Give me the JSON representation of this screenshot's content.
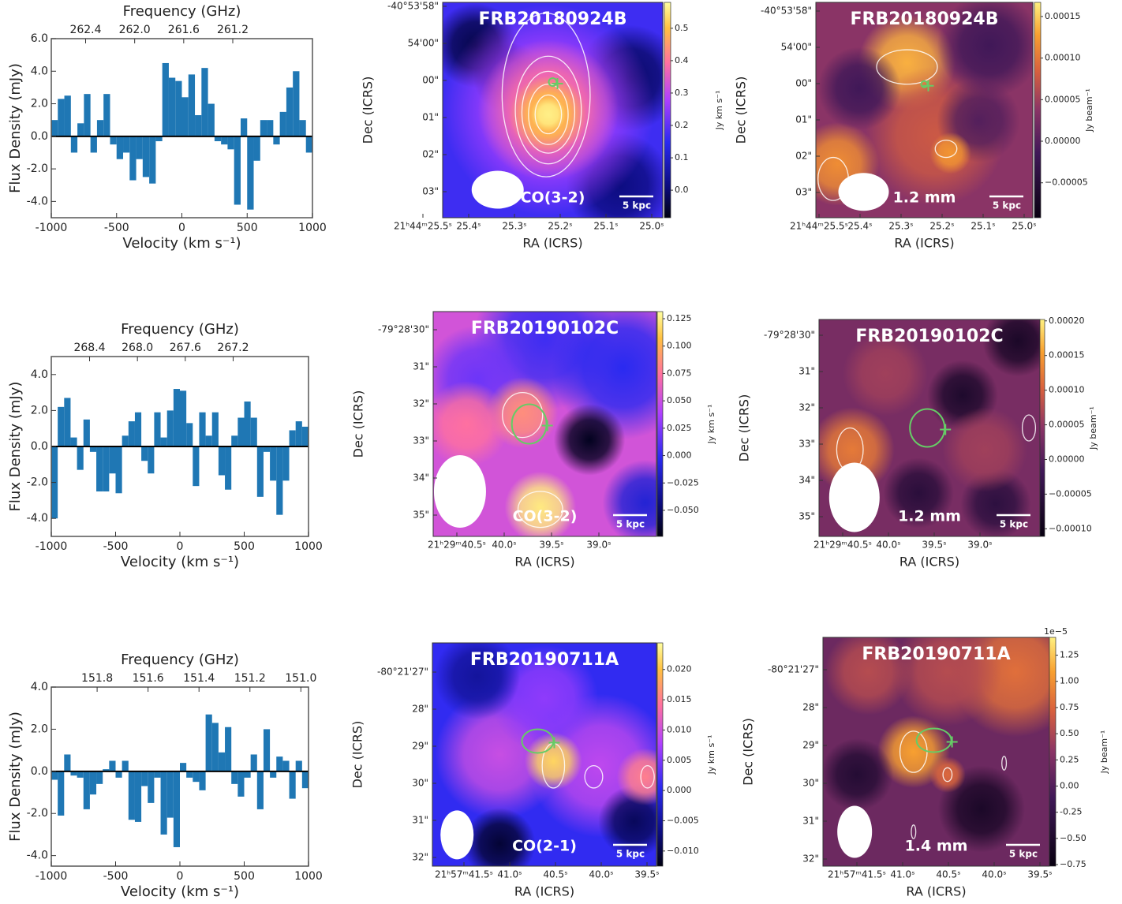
{
  "chart_data": [
    {
      "type": "histogram",
      "xlabel": "Velocity (km s⁻¹)",
      "ylabel": "Flux Density (mJy)",
      "x2label": "Frequency (GHz)",
      "color": "#1f77b4",
      "bins": [
        -1000,
        -950,
        -900,
        -850,
        -800,
        -750,
        -700,
        -650,
        -600,
        -550,
        -500,
        -450,
        -400,
        -350,
        -300,
        -250,
        -200,
        -150,
        -100,
        -50,
        0,
        50,
        100,
        150,
        200,
        250,
        300,
        350,
        400,
        450,
        500,
        550,
        600,
        650,
        700,
        750,
        800,
        850,
        900,
        950,
        1000
      ],
      "values": [
        1.0,
        2.3,
        2.5,
        -1.0,
        0.8,
        2.6,
        -1.0,
        1.0,
        2.6,
        -0.5,
        -1.4,
        -1.0,
        -2.7,
        -1.4,
        -2.5,
        -2.9,
        -0.3,
        4.5,
        3.6,
        3.4,
        2.4,
        3.8,
        1.3,
        4.2,
        2.0,
        -0.3,
        -0.5,
        -0.8,
        -4.2,
        1.1,
        -4.5,
        -1.5,
        1.0,
        1.0,
        -0.5,
        1.5,
        3.0,
        4.0,
        1.0,
        -1.0
      ],
      "xlim": [
        -1000,
        1000
      ],
      "xticks": [
        -1000,
        -500,
        0,
        500,
        1000
      ],
      "ylim": [
        -5,
        6
      ],
      "yticks": [
        {
          "value": -4,
          "label": "-4.0"
        },
        {
          "value": -2,
          "label": "-2.0"
        },
        {
          "value": 0,
          "label": "0.0"
        },
        {
          "value": 2,
          "label": "2.0"
        },
        {
          "value": 4,
          "label": "4.0"
        },
        {
          "value": 6,
          "label": "6.0"
        }
      ],
      "x2lim": [
        262.68,
        260.55
      ],
      "x2ticks": [
        262.4,
        {
          "value": 262,
          "label": "262.0"
        },
        261.6,
        261.2
      ]
    },
    {
      "type": "image",
      "colormap": "gnuplot2",
      "title": "FRB20180924B",
      "label": "CO(3-2)",
      "scalebar_label": "5 kpc",
      "xlabel": "RA (ICRS)",
      "ylabel": "Dec (ICRS)",
      "xtick_labels": [
        "21ʰ44ᵐ25.5ˢ",
        "25.4ˢ",
        "25.3ˢ",
        "25.2ˢ",
        "25.1ˢ",
        "25.0ˢ"
      ],
      "ytick_labels": [
        "-40°53'58\"",
        "54'00\"",
        "00\"",
        "01\"",
        "02\"",
        "03\""
      ],
      "colorbar_label": "Jy km s⁻¹",
      "clim": [
        -0.085,
        0.58
      ],
      "cticks": [
        {
          "value": 0,
          "label": "0.0"
        },
        0.1,
        0.2,
        0.3,
        0.4,
        0.5
      ]
    },
    {
      "type": "image",
      "colormap": "CMRmap",
      "title": "FRB20180924B",
      "label": "1.2 mm",
      "scalebar_label": "5 kpc",
      "xlabel": "RA (ICRS)",
      "ylabel": "Dec (ICRS)",
      "xtick_labels": [
        "21ʰ44ᵐ25.5ˢ",
        "25.4ˢ",
        "25.3ˢ",
        "25.2ˢ",
        "25.1ˢ",
        "25.0ˢ"
      ],
      "ytick_labels": [
        "-40°53'58\"",
        "54'00\"",
        "00\"",
        "01\"",
        "02\"",
        "03\""
      ],
      "colorbar_label": "Jy beam⁻¹",
      "clim": [
        -9.2e-05,
        0.000167
      ],
      "cticks": [
        {
          "value": -5e-05,
          "label": "−0.00005"
        },
        {
          "value": 0,
          "label": "0.00000"
        },
        5e-05,
        {
          "value": 0.0001,
          "label": "0.00010"
        },
        0.00015
      ]
    },
    {
      "type": "histogram",
      "xlabel": "Velocity (km s⁻¹)",
      "ylabel": "Flux Density (mJy)",
      "x2label": "Frequency (GHz)",
      "color": "#1f77b4",
      "bins": [
        -1000,
        -950,
        -900,
        -850,
        -800,
        -750,
        -700,
        -650,
        -600,
        -550,
        -500,
        -450,
        -400,
        -350,
        -300,
        -250,
        -200,
        -150,
        -100,
        -50,
        0,
        50,
        100,
        150,
        200,
        250,
        300,
        350,
        400,
        450,
        500,
        550,
        600,
        650,
        700,
        750,
        800,
        850,
        900,
        950,
        1000
      ],
      "values": [
        -4.0,
        2.2,
        2.7,
        0.5,
        -1.3,
        1.5,
        -0.3,
        -2.5,
        -2.5,
        -1.5,
        -2.6,
        0.6,
        1.4,
        1.9,
        -0.8,
        -1.5,
        1.9,
        0.5,
        2.0,
        3.2,
        3.1,
        1.3,
        -2.2,
        1.9,
        0.6,
        1.9,
        -1.6,
        -2.4,
        0.6,
        1.6,
        2.5,
        1.6,
        -2.8,
        -0.3,
        -1.9,
        -3.8,
        -1.9,
        0.9,
        1.4,
        1.1
      ],
      "xlim": [
        -1000,
        1000
      ],
      "xticks": [
        -1000,
        -500,
        0,
        500,
        1000
      ],
      "ylim": [
        -5,
        5
      ],
      "yticks": [
        {
          "value": -4,
          "label": "-4.0"
        },
        {
          "value": -2,
          "label": "-2.0"
        },
        {
          "value": 0,
          "label": "0.0"
        },
        {
          "value": 2,
          "label": "2.0"
        },
        {
          "value": 4,
          "label": "4.0"
        }
      ],
      "x2lim": [
        268.72,
        266.57
      ],
      "x2ticks": [
        268.4,
        {
          "value": 268,
          "label": "268.0"
        },
        267.6,
        267.2
      ]
    },
    {
      "type": "image",
      "colormap": "gnuplot2",
      "title": "FRB20190102C",
      "label": "CO(3-2)",
      "scalebar_label": "5 kpc",
      "xlabel": "RA (ICRS)",
      "ylabel": "Dec (ICRS)",
      "xtick_labels": [
        "21ʰ29ᵐ40.5ˢ",
        "40.0ˢ",
        "39.5ˢ",
        "39.0ˢ"
      ],
      "ytick_labels": [
        "-79°28'30\"",
        "31\"",
        "32\"",
        "33\"",
        "34\"",
        "35\""
      ],
      "colorbar_label": "Jy km s⁻¹",
      "clim": [
        -0.0738,
        0.1315
      ],
      "cticks": [
        {
          "value": -0.05,
          "label": "−0.050"
        },
        {
          "value": -0.025,
          "label": "−0.025"
        },
        {
          "value": 0,
          "label": "0.000"
        },
        0.025,
        {
          "value": 0.05,
          "label": "0.050"
        },
        0.075,
        {
          "value": 0.1,
          "label": "0.100"
        },
        0.125
      ]
    },
    {
      "type": "image",
      "colormap": "CMRmap",
      "title": "FRB20190102C",
      "label": "1.2 mm",
      "scalebar_label": "5 kpc",
      "xlabel": "RA (ICRS)",
      "ylabel": "Dec (ICRS)",
      "xtick_labels": [
        "21ʰ29ᵐ40.5ˢ",
        "40.0ˢ",
        "39.5ˢ",
        "39.0ˢ"
      ],
      "ytick_labels": [
        "-79°28'30\"",
        "31\"",
        "32\"",
        "33\"",
        "34\"",
        "35\""
      ],
      "colorbar_label": "Jy beam⁻¹",
      "clim": [
        -0.000111,
        0.000202
      ],
      "cticks": [
        {
          "value": -0.0001,
          "label": "−0.00010"
        },
        {
          "value": -5e-05,
          "label": "−0.00005"
        },
        {
          "value": 0,
          "label": "0.00000"
        },
        5e-05,
        {
          "value": 0.0001,
          "label": "0.00010"
        },
        0.00015,
        {
          "value": 0.0002,
          "label": "0.00020"
        }
      ]
    },
    {
      "type": "histogram",
      "xlabel": "Velocity (km s⁻¹)",
      "ylabel": "Flux Density (mJy)",
      "x2label": "Frequency (GHz)",
      "color": "#1f77b4",
      "bins": [
        -1000,
        -950,
        -900,
        -850,
        -800,
        -750,
        -700,
        -650,
        -600,
        -550,
        -500,
        -450,
        -400,
        -350,
        -300,
        -250,
        -200,
        -150,
        -100,
        -50,
        0,
        50,
        100,
        150,
        200,
        250,
        300,
        350,
        400,
        450,
        500,
        550,
        600,
        650,
        700,
        750,
        800,
        850,
        900,
        950,
        1000
      ],
      "values": [
        -0.4,
        -2.1,
        0.8,
        -0.2,
        -0.3,
        -1.8,
        -1.1,
        -0.6,
        0.1,
        0.5,
        -0.3,
        0.5,
        -2.3,
        -2.4,
        -0.7,
        -1.5,
        -0.3,
        -3.0,
        -2.2,
        -3.6,
        0.4,
        -0.3,
        -0.5,
        -0.9,
        2.7,
        2.3,
        0.9,
        2.1,
        -0.6,
        -1.2,
        -0.3,
        0.8,
        -1.8,
        2.0,
        -0.3,
        0.7,
        0.5,
        -1.3,
        0.5,
        -0.8
      ],
      "xlim": [
        -1000,
        1000
      ],
      "xticks": [
        -1000,
        -500,
        0,
        500,
        1000
      ],
      "ylim": [
        -4.5,
        4
      ],
      "yticks": [
        {
          "value": -4,
          "label": "-4.0"
        },
        {
          "value": -2,
          "label": "-2.0"
        },
        {
          "value": 0,
          "label": "0.0"
        },
        {
          "value": 2,
          "label": "2.0"
        },
        {
          "value": 4,
          "label": "4.0"
        }
      ],
      "x2lim": [
        151.98,
        150.97
      ],
      "x2ticks": [
        151.8,
        151.6,
        151.4,
        151.2,
        {
          "value": 151,
          "label": "151.0"
        }
      ]
    },
    {
      "type": "image",
      "colormap": "gnuplot2",
      "title": "FRB20190711A",
      "label": "CO(2-1)",
      "scalebar_label": "5 kpc",
      "xlabel": "RA (ICRS)",
      "ylabel": "Dec (ICRS)",
      "xtick_labels": [
        "21ʰ57ᵐ41.5ˢ",
        "41.0ˢ",
        "40.5ˢ",
        "40.0ˢ",
        "39.5ˢ"
      ],
      "ytick_labels": [
        "-80°21'27\"",
        "28\"",
        "29\"",
        "30\"",
        "31\"",
        "32\""
      ],
      "colorbar_label": "Jy km s⁻¹",
      "clim": [
        -0.0125,
        0.0244
      ],
      "cticks": [
        {
          "value": -0.01,
          "label": "−0.010"
        },
        {
          "value": -0.005,
          "label": "−0.005"
        },
        {
          "value": 0,
          "label": "0.000"
        },
        0.005,
        {
          "value": 0.01,
          "label": "0.010"
        },
        0.015,
        {
          "value": 0.02,
          "label": "0.020"
        }
      ]
    },
    {
      "type": "image",
      "colormap": "CMRmap",
      "title": "FRB20190711A",
      "label": "1.4 mm",
      "scalebar_label": "5 kpc",
      "xlabel": "RA (ICRS)",
      "ylabel": "Dec (ICRS)",
      "xtick_labels": [
        "21ʰ57ᵐ41.5ˢ",
        "41.0ˢ",
        "40.5ˢ",
        "40.0ˢ",
        "39.5ˢ"
      ],
      "ytick_labels": [
        "-80°21'27\"",
        "28\"",
        "29\"",
        "30\"",
        "31\"",
        "32\""
      ],
      "colorbar_label": "Jy beam⁻¹",
      "offset_label": "1e−5",
      "clim": [
        -0.765,
        1.42
      ],
      "cticks": [
        {
          "value": -0.75,
          "label": "−0.75"
        },
        {
          "value": -0.5,
          "label": "−0.50"
        },
        -0.25,
        {
          "value": 0,
          "label": "0.00"
        },
        0.25,
        {
          "value": 0.5,
          "label": "0.50"
        },
        0.75,
        {
          "value": 1,
          "label": "1.00"
        },
        1.25
      ]
    }
  ]
}
